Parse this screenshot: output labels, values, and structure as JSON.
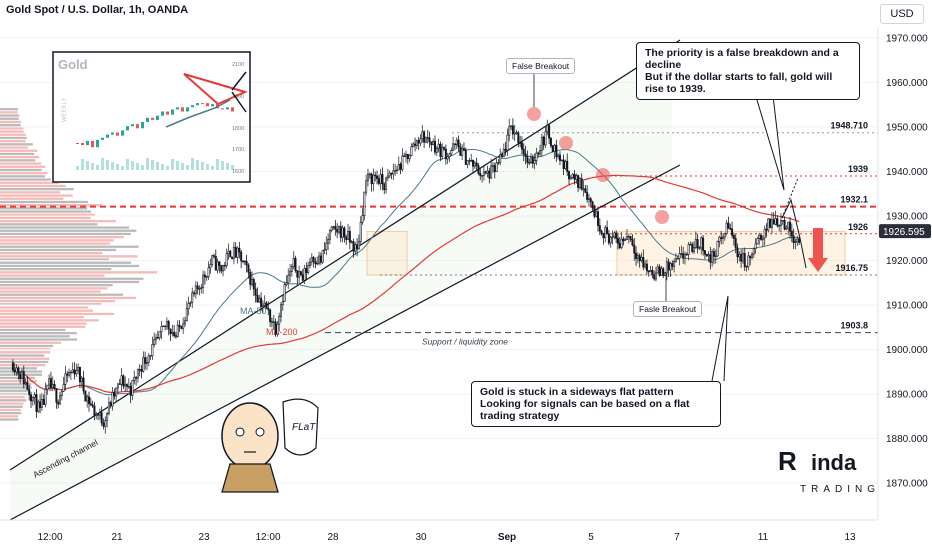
{
  "header": {
    "title": "Gold Spot / U.S. Dollar, 1h, OANDA",
    "currency_button": "USD"
  },
  "chart_data": {
    "type": "candlestick",
    "symbol": "Gold Spot / U.S. Dollar",
    "timeframe": "1h",
    "ylim": [
      1865,
      1975
    ],
    "y_ticks": [
      "1970.000",
      "1960.000",
      "1950.000",
      "1940.000",
      "1930.000",
      "1920.000",
      "1910.000",
      "1900.000",
      "1890.000",
      "1880.000",
      "1870.000"
    ],
    "x_ticks": [
      "12:00",
      "21",
      "23",
      "12:00",
      "28",
      "30",
      "Sep",
      "5",
      "7",
      "11",
      "13"
    ],
    "current_price": "1926.595",
    "levels": [
      {
        "label": "1948.710",
        "value": 1948.71,
        "color": "#9598a1",
        "style": "dotted"
      },
      {
        "label": "1939",
        "value": 1939,
        "color": "#e53935",
        "style": "dotted"
      },
      {
        "label": "1932.1",
        "value": 1932.1,
        "color": "#e53935",
        "style": "dashed"
      },
      {
        "label": "1926",
        "value": 1926,
        "color": "#e53935",
        "style": "dotted"
      },
      {
        "label": "1916.75",
        "value": 1916.75,
        "color": "#787b86",
        "style": "dotted"
      },
      {
        "label": "1903.8",
        "value": 1903.8,
        "color": "#37474f",
        "style": "dashed"
      }
    ],
    "moving_averages": [
      {
        "name": "MA-50",
        "color": "#4a7a8c"
      },
      {
        "name": "MA-200",
        "color": "#e53935"
      }
    ],
    "annotations": {
      "false_breakout": "False Breakout",
      "fasle_breakout": "Fasle Breakout",
      "support_zone": "Support / liquidity zone",
      "ascending_channel": "Ascending channel",
      "callout_top_line1": "The priority is a false breakdown and a decline",
      "callout_top_line2": "But if the dollar starts to fall, gold will rise to 1939.",
      "callout_bottom_line1": "Gold is stuck in a sideways flat pattern",
      "callout_bottom_line2": "Looking for signals can be based on a flat trading strategy"
    },
    "path": [
      1897,
      1894,
      1890,
      1886,
      1892,
      1889,
      1894,
      1896,
      1890,
      1886,
      1884,
      1889,
      1893,
      1891,
      1896,
      1899,
      1902,
      1906,
      1903,
      1908,
      1912,
      1916,
      1920,
      1918,
      1922,
      1921,
      1917,
      1912,
      1909,
      1905,
      1914,
      1919,
      1916,
      1921,
      1920,
      1926,
      1927,
      1925,
      1922,
      1938,
      1939,
      1937,
      1940,
      1942,
      1945,
      1948,
      1947,
      1945,
      1944,
      1946,
      1943,
      1941,
      1939,
      1940,
      1943,
      1950,
      1947,
      1941,
      1945,
      1949,
      1944,
      1941,
      1938,
      1937,
      1932,
      1927,
      1925,
      1924,
      1926,
      1921,
      1918,
      1917,
      1918,
      1919,
      1921,
      1923,
      1924,
      1920,
      1924,
      1928,
      1922,
      1919,
      1923,
      1927,
      1929,
      1929,
      1926,
      1924
    ]
  },
  "inset": {
    "title": "Gold",
    "weekly_label": "WEEKLY",
    "y_ticks": [
      "2100",
      "1900",
      "1800",
      "1700",
      "1600"
    ]
  },
  "cartoon": {
    "speech": "FLaT"
  },
  "logo": {
    "text_top": "inda",
    "text_bottom": "TRADING"
  }
}
